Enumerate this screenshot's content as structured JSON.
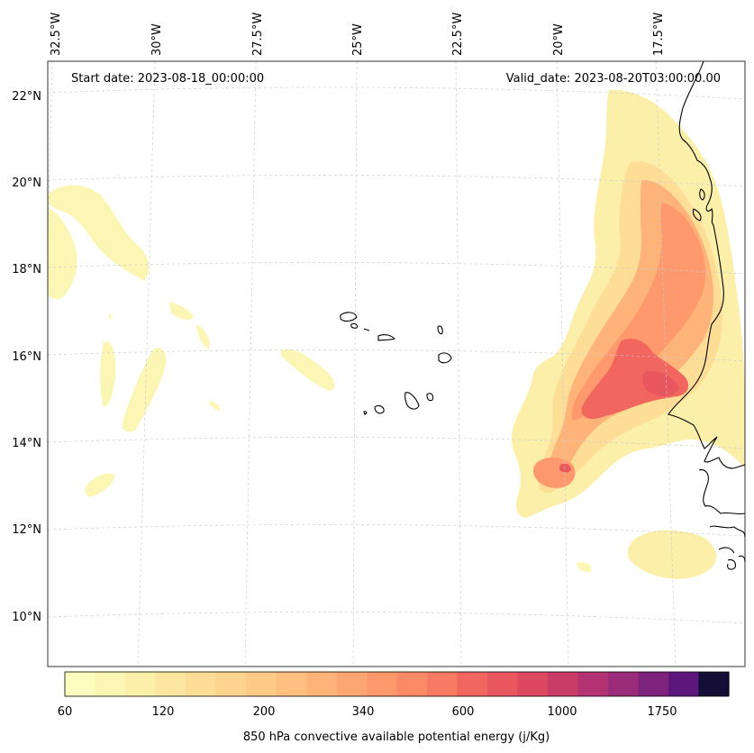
{
  "header": {
    "start_date": "Start date: 2023-08-18_00:00:00",
    "valid_date": "Valid_date: 2023-08-20T03:00:00.00"
  },
  "map": {
    "lon_labels": [
      "32.5°W",
      "30°W",
      "27.5°W",
      "25°W",
      "22.5°W",
      "20°W",
      "17.5°W"
    ],
    "lat_labels": [
      "22°N",
      "20°N",
      "18°N",
      "16°N",
      "14°N",
      "12°N",
      "10°N"
    ],
    "gridlines": true,
    "coastline_color": "#000000"
  },
  "colorbar": {
    "label": "850 hPa convective available potential energy (j/Kg)",
    "tick_labels": [
      "60",
      "120",
      "200",
      "340",
      "600",
      "1000",
      "1750"
    ],
    "colors": [
      "#fcfdbf",
      "#fcf6b5",
      "#fcefaa",
      "#fde6a0",
      "#fede97",
      "#fed48e",
      "#feca86",
      "#febf7f",
      "#feb379",
      "#fea672",
      "#fd996c",
      "#fb8a66",
      "#f77a62",
      "#f1675f",
      "#e8565e",
      "#db4860",
      "#c83c68",
      "#b33372",
      "#9a2c79",
      "#7e237c",
      "#5d177b",
      "#140e36"
    ]
  }
}
